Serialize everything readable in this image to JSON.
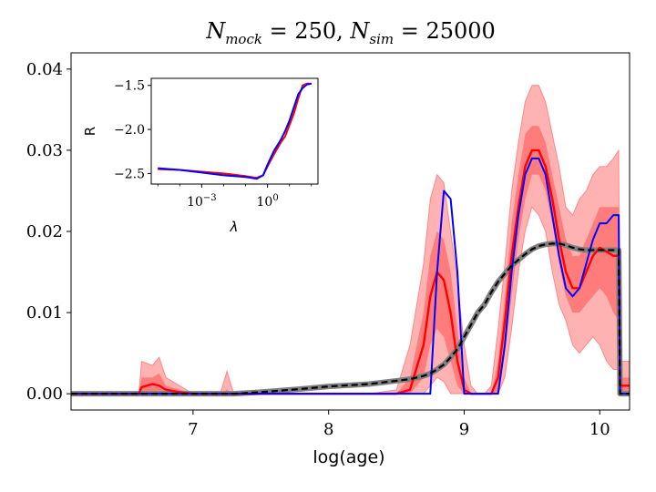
{
  "chart_data": [
    {
      "type": "line",
      "title": "N_mock = 250, N_sim = 25000",
      "title_parts": {
        "a": "N",
        "a_sub": "mock",
        "a_val": " = 250, ",
        "b": "N",
        "b_sub": "sim",
        "b_val": " = 25000"
      },
      "xlabel": "log(age)",
      "ylabel": "",
      "xlim": [
        6.1,
        10.22
      ],
      "ylim": [
        -0.002,
        0.042
      ],
      "xticks": [
        7,
        8,
        9,
        10
      ],
      "xtick_labels": [
        "7",
        "8",
        "9",
        "10"
      ],
      "yticks": [
        0.0,
        0.01,
        0.02,
        0.03,
        0.04
      ],
      "ytick_labels": [
        "0.00",
        "0.01",
        "0.02",
        "0.03",
        "0.04"
      ],
      "legend": "none",
      "x": [
        6.1,
        6.5,
        6.6,
        6.62,
        6.7,
        6.75,
        6.8,
        6.9,
        7.0,
        7.2,
        7.25,
        7.3,
        7.5,
        7.8,
        8.0,
        8.3,
        8.5,
        8.6,
        8.7,
        8.75,
        8.8,
        8.85,
        8.9,
        8.95,
        9.0,
        9.05,
        9.1,
        9.15,
        9.2,
        9.25,
        9.3,
        9.35,
        9.4,
        9.45,
        9.5,
        9.55,
        9.6,
        9.65,
        9.7,
        9.75,
        9.8,
        9.85,
        9.9,
        9.95,
        10.0,
        10.05,
        10.1,
        10.14,
        10.15,
        10.17,
        10.22
      ],
      "series": [
        {
          "name": "median",
          "color": "#ff0000",
          "values": [
            0,
            0,
            0,
            0.0008,
            0.0012,
            0.001,
            0.0005,
            0.0002,
            0,
            0,
            0,
            0,
            0,
            0,
            0,
            0,
            0,
            0.0005,
            0.006,
            0.012,
            0.015,
            0.014,
            0.01,
            0.004,
            0.0005,
            0,
            0,
            0,
            0,
            0.002,
            0.009,
            0.017,
            0.023,
            0.028,
            0.03,
            0.03,
            0.028,
            0.024,
            0.019,
            0.015,
            0.013,
            0.013,
            0.015,
            0.017,
            0.018,
            0.0175,
            0.017,
            0.017,
            0.001,
            0.001,
            0.001
          ]
        },
        {
          "name": "band_68_lower",
          "color": "#ff0000",
          "values": [
            0,
            0,
            0,
            0,
            0,
            0,
            0,
            0,
            0,
            0,
            0,
            0,
            0,
            0,
            0,
            0,
            0,
            0,
            0.002,
            0.006,
            0.008,
            0.007,
            0.004,
            0.001,
            0,
            0,
            0,
            0,
            0,
            0,
            0.005,
            0.012,
            0.019,
            0.024,
            0.027,
            0.027,
            0.025,
            0.021,
            0.016,
            0.012,
            0.01,
            0.01,
            0.011,
            0.012,
            0.013,
            0.012,
            0.01,
            0.009,
            0,
            0,
            0
          ]
        },
        {
          "name": "band_68_upper",
          "color": "#ff0000",
          "values": [
            0,
            0,
            0,
            0.002,
            0.002,
            0.0025,
            0.001,
            0.0005,
            0,
            0,
            0.0005,
            0,
            0,
            0,
            0,
            0,
            0,
            0.002,
            0.01,
            0.017,
            0.02,
            0.019,
            0.015,
            0.008,
            0.002,
            0,
            0,
            0,
            0,
            0.004,
            0.012,
            0.021,
            0.027,
            0.032,
            0.033,
            0.033,
            0.031,
            0.027,
            0.023,
            0.019,
            0.017,
            0.017,
            0.019,
            0.021,
            0.023,
            0.023,
            0.023,
            0.023,
            0.002,
            0.002,
            0.002
          ]
        },
        {
          "name": "band_95_lower",
          "color": "#ff0000",
          "values": [
            0,
            0,
            0,
            0,
            0,
            0,
            0,
            0,
            0,
            0,
            0,
            0,
            0,
            0,
            0,
            0,
            0,
            0,
            0,
            0.001,
            0.002,
            0.0015,
            0,
            0,
            0,
            0,
            0,
            0,
            0,
            0,
            0.002,
            0.008,
            0.015,
            0.02,
            0.023,
            0.022,
            0.02,
            0.015,
            0.011,
            0.009,
            0.006,
            0.005,
            0.006,
            0.007,
            0.006,
            0.004,
            0.003,
            0.003,
            0,
            0,
            0
          ]
        },
        {
          "name": "band_95_upper",
          "color": "#ff0000",
          "values": [
            0,
            0,
            0,
            0.004,
            0.0035,
            0.0045,
            0.002,
            0.001,
            0,
            0,
            0.0028,
            0,
            0,
            0,
            0,
            0,
            0.0005,
            0.006,
            0.016,
            0.024,
            0.027,
            0.026,
            0.02,
            0.014,
            0.006,
            0.001,
            0,
            0,
            0.001,
            0.008,
            0.016,
            0.025,
            0.031,
            0.036,
            0.038,
            0.038,
            0.036,
            0.032,
            0.028,
            0.023,
            0.022,
            0.024,
            0.025,
            0.027,
            0.028,
            0.028,
            0.029,
            0.03,
            0.004,
            0.004,
            0.004
          ]
        },
        {
          "name": "truth",
          "color": "#0000ff",
          "values": [
            0,
            0,
            0,
            0,
            0,
            0,
            0,
            0,
            0,
            0,
            0,
            0,
            0,
            0,
            0,
            0,
            0,
            0,
            0,
            0,
            0.015,
            0.025,
            0.024,
            0.015,
            0,
            0,
            0,
            0,
            0,
            0,
            0.006,
            0.015,
            0.022,
            0.027,
            0.029,
            0.029,
            0.027,
            0.022,
            0.017,
            0.013,
            0.012,
            0.013,
            0.016,
            0.019,
            0.021,
            0.021,
            0.022,
            0.022,
            0,
            0,
            0
          ]
        },
        {
          "name": "cumulative_gray",
          "color": "#808080",
          "values": [
            0,
            0,
            0,
            0,
            0,
            0,
            0,
            0,
            0,
            0,
            0,
            0,
            0.0002,
            0.0006,
            0.0009,
            0.0012,
            0.0016,
            0.0018,
            0.0022,
            0.0025,
            0.003,
            0.0036,
            0.0045,
            0.0055,
            0.007,
            0.0085,
            0.01,
            0.011,
            0.0125,
            0.0138,
            0.0148,
            0.0158,
            0.0165,
            0.0172,
            0.0178,
            0.0182,
            0.0184,
            0.0185,
            0.0185,
            0.0183,
            0.018,
            0.0178,
            0.0177,
            0.0177,
            0.0177,
            0.0177,
            0.0177,
            0.0177,
            0.0,
            0.0,
            0.0
          ]
        },
        {
          "name": "cumulative_black_dashed",
          "color": "#000000",
          "values": [
            0,
            0,
            0,
            0,
            0,
            0,
            0,
            0,
            0,
            0,
            0,
            0,
            0.0002,
            0.0006,
            0.0009,
            0.0012,
            0.0016,
            0.0018,
            0.0022,
            0.0025,
            0.003,
            0.0036,
            0.0045,
            0.0055,
            0.007,
            0.0085,
            0.01,
            0.011,
            0.0125,
            0.0138,
            0.0148,
            0.0158,
            0.0165,
            0.0172,
            0.0178,
            0.0182,
            0.0184,
            0.0185,
            0.0185,
            0.0183,
            0.018,
            0.0178,
            0.0177,
            0.0177,
            0.0177,
            0.0177,
            0.0177,
            0.0177,
            0.0,
            0.0,
            0.0
          ]
        }
      ]
    },
    {
      "type": "line",
      "title": "",
      "xlabel": "λ",
      "ylabel": "R",
      "xscale": "log",
      "xlim": [
        -5.3,
        2.3
      ],
      "ylim": [
        -2.62,
        -1.42
      ],
      "xticks": [
        -3,
        0
      ],
      "xtick_labels": [
        "10−3",
        "100"
      ],
      "xtick_sup": [
        "−3",
        "0"
      ],
      "yticks": [
        -2.5,
        -2.0,
        -1.5
      ],
      "ytick_labels": [
        "−2.5",
        "−2.0",
        "−1.5"
      ],
      "legend": "none",
      "x": [
        -5.0,
        -4.0,
        -3.0,
        -2.0,
        -1.0,
        -0.5,
        -0.2,
        0.0,
        0.3,
        0.6,
        0.8,
        1.0,
        1.2,
        1.4,
        1.6,
        1.8,
        2.0
      ],
      "series": [
        {
          "name": "red",
          "color": "#ff0000",
          "values": [
            -2.45,
            -2.46,
            -2.48,
            -2.5,
            -2.53,
            -2.55,
            -2.52,
            -2.42,
            -2.28,
            -2.15,
            -2.08,
            -1.95,
            -1.82,
            -1.65,
            -1.5,
            -1.48,
            -1.48
          ]
        },
        {
          "name": "blue",
          "color": "#0000ff",
          "values": [
            -2.44,
            -2.46,
            -2.49,
            -2.52,
            -2.54,
            -2.56,
            -2.52,
            -2.4,
            -2.24,
            -2.12,
            -2.02,
            -1.9,
            -1.75,
            -1.6,
            -1.53,
            -1.49,
            -1.48
          ]
        }
      ]
    }
  ]
}
